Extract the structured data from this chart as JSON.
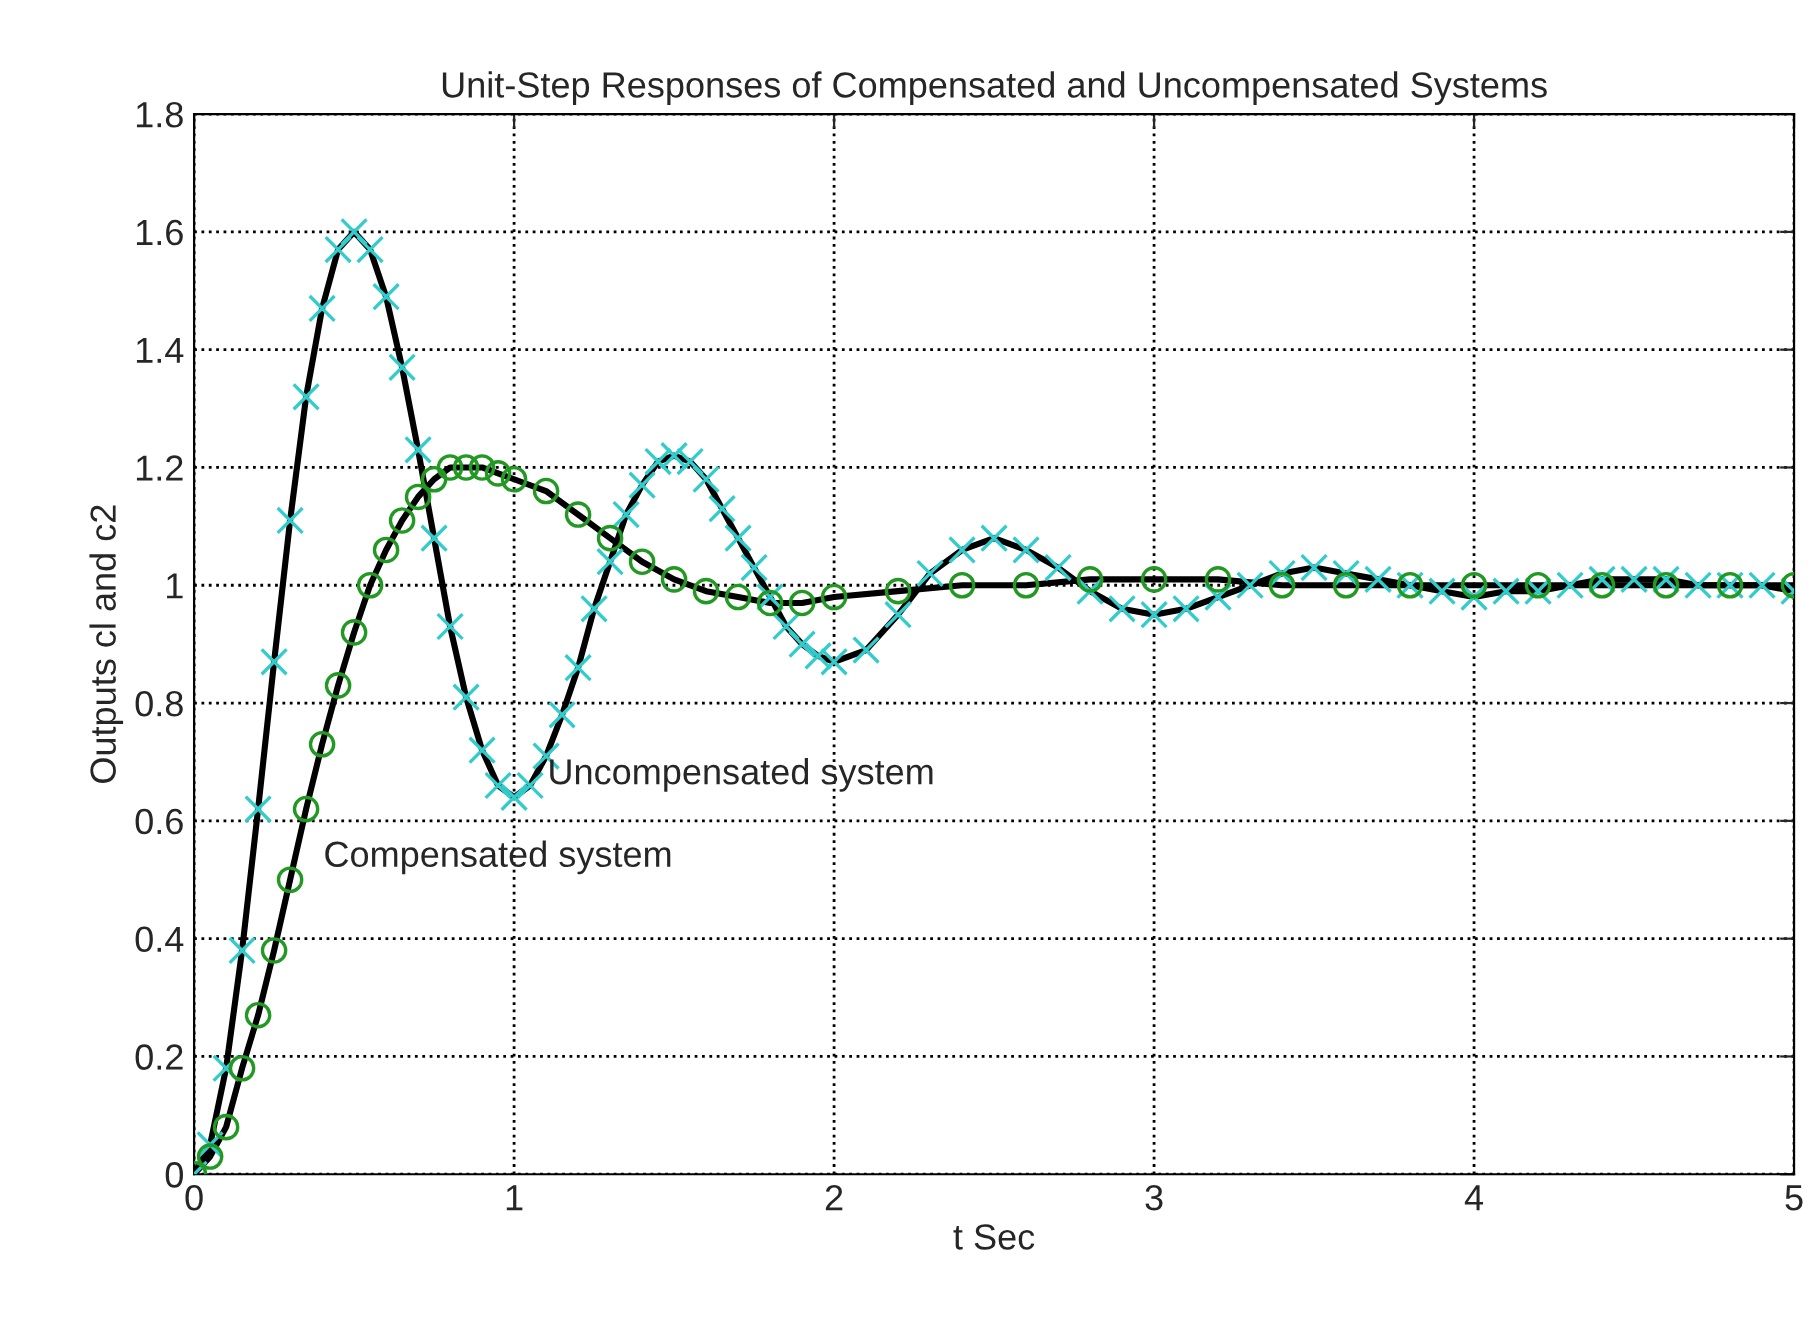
{
  "chart_data": {
    "type": "line",
    "title": "Unit-Step Responses of Compensated and Uncompensated Systems",
    "xlabel": "t Sec",
    "ylabel": "Outputs cl and c2",
    "xlim": [
      0,
      5
    ],
    "ylim": [
      0,
      1.8
    ],
    "xticks": [
      0,
      1,
      2,
      3,
      4,
      5
    ],
    "yticks": [
      0,
      {
        "value": 0.2,
        "label": "0.2"
      },
      {
        "value": 0.4,
        "label": "0.4"
      },
      {
        "value": 0.6,
        "label": "0.6"
      },
      {
        "value": 0.8,
        "label": "0.8"
      },
      1,
      {
        "value": 1.2,
        "label": "1.2"
      },
      {
        "value": 1.4,
        "label": "1.4"
      },
      {
        "value": 1.6,
        "label": "1.6"
      },
      {
        "value": 1.8,
        "label": "1.8"
      }
    ],
    "grid": true,
    "series": [
      {
        "color": "#000000",
        "marker": "none",
        "x": [
          0,
          0.05,
          0.1,
          0.15,
          0.2,
          0.25,
          0.3,
          0.35,
          0.4,
          0.45,
          0.5,
          0.55,
          0.6,
          0.65,
          0.7,
          0.75,
          0.8,
          0.85,
          0.9,
          0.95,
          1.0,
          1.05,
          1.1,
          1.15,
          1.2,
          1.25,
          1.3,
          1.35,
          1.4,
          1.45,
          1.5,
          1.55,
          1.6,
          1.65,
          1.7,
          1.75,
          1.8,
          1.85,
          1.9,
          1.95,
          2.0,
          2.1,
          2.2,
          2.3,
          2.4,
          2.5,
          2.6,
          2.7,
          2.8,
          2.9,
          3.0,
          3.1,
          3.2,
          3.3,
          3.4,
          3.5,
          3.6,
          3.7,
          3.8,
          3.9,
          4.0,
          4.1,
          4.2,
          4.3,
          4.4,
          4.5,
          4.6,
          4.7,
          4.8,
          4.9,
          5.0
        ],
        "values": [
          0,
          0.05,
          0.18,
          0.38,
          0.62,
          0.87,
          1.11,
          1.32,
          1.47,
          1.57,
          1.6,
          1.57,
          1.49,
          1.37,
          1.23,
          1.08,
          0.93,
          0.81,
          0.72,
          0.66,
          0.64,
          0.66,
          0.71,
          0.78,
          0.86,
          0.96,
          1.04,
          1.12,
          1.17,
          1.21,
          1.22,
          1.21,
          1.18,
          1.13,
          1.08,
          1.03,
          0.98,
          0.93,
          0.9,
          0.88,
          0.87,
          0.89,
          0.95,
          1.02,
          1.06,
          1.08,
          1.06,
          1.03,
          0.99,
          0.96,
          0.95,
          0.96,
          0.98,
          1.0,
          1.02,
          1.03,
          1.02,
          1.01,
          1.0,
          0.99,
          0.98,
          0.99,
          0.99,
          1.0,
          1.01,
          1.01,
          1.01,
          1.0,
          1.0,
          1.0,
          0.99
        ]
      },
      {
        "type": "scatter",
        "color": "#33cccc",
        "marker": "cross",
        "x": [
          0,
          0.05,
          0.1,
          0.15,
          0.2,
          0.25,
          0.3,
          0.35,
          0.4,
          0.45,
          0.5,
          0.55,
          0.6,
          0.65,
          0.7,
          0.75,
          0.8,
          0.85,
          0.9,
          0.95,
          1.0,
          1.05,
          1.1,
          1.15,
          1.2,
          1.25,
          1.3,
          1.35,
          1.4,
          1.45,
          1.5,
          1.55,
          1.6,
          1.65,
          1.7,
          1.75,
          1.8,
          1.85,
          1.9,
          1.95,
          2.0,
          2.1,
          2.2,
          2.3,
          2.4,
          2.5,
          2.6,
          2.7,
          2.8,
          2.9,
          3.0,
          3.1,
          3.2,
          3.3,
          3.4,
          3.5,
          3.6,
          3.7,
          3.8,
          3.9,
          4.0,
          4.1,
          4.2,
          4.3,
          4.4,
          4.5,
          4.6,
          4.7,
          4.8,
          4.9,
          5.0
        ],
        "values": [
          0,
          0.05,
          0.18,
          0.38,
          0.62,
          0.87,
          1.11,
          1.32,
          1.47,
          1.57,
          1.6,
          1.57,
          1.49,
          1.37,
          1.23,
          1.08,
          0.93,
          0.81,
          0.72,
          0.66,
          0.64,
          0.66,
          0.71,
          0.78,
          0.86,
          0.96,
          1.04,
          1.12,
          1.17,
          1.21,
          1.22,
          1.21,
          1.18,
          1.13,
          1.08,
          1.03,
          0.98,
          0.93,
          0.9,
          0.88,
          0.87,
          0.89,
          0.95,
          1.02,
          1.06,
          1.08,
          1.06,
          1.03,
          0.99,
          0.96,
          0.95,
          0.96,
          0.98,
          1.0,
          1.02,
          1.03,
          1.02,
          1.01,
          1.0,
          0.99,
          0.98,
          0.99,
          0.99,
          1.0,
          1.01,
          1.01,
          1.01,
          1.0,
          1.0,
          1.0,
          0.99
        ]
      },
      {
        "color": "#000000",
        "marker": "none",
        "x": [
          0,
          0.05,
          0.1,
          0.15,
          0.2,
          0.25,
          0.3,
          0.35,
          0.4,
          0.45,
          0.5,
          0.55,
          0.6,
          0.65,
          0.7,
          0.75,
          0.8,
          0.85,
          0.9,
          0.95,
          1.0,
          1.1,
          1.2,
          1.3,
          1.4,
          1.5,
          1.6,
          1.7,
          1.8,
          1.9,
          2.0,
          2.2,
          2.4,
          2.6,
          2.8,
          3.0,
          3.2,
          3.4,
          3.6,
          3.8,
          4.0,
          4.2,
          4.4,
          4.6,
          4.8,
          5.0
        ],
        "values": [
          0,
          0.03,
          0.08,
          0.18,
          0.27,
          0.38,
          0.5,
          0.62,
          0.73,
          0.83,
          0.92,
          1.0,
          1.06,
          1.11,
          1.15,
          1.18,
          1.2,
          1.2,
          1.2,
          1.19,
          1.18,
          1.16,
          1.12,
          1.08,
          1.04,
          1.01,
          0.99,
          0.98,
          0.97,
          0.97,
          0.98,
          0.99,
          1.0,
          1.0,
          1.01,
          1.01,
          1.01,
          1.0,
          1.0,
          1.0,
          1.0,
          1.0,
          1.0,
          1.0,
          1.0,
          1.0
        ]
      },
      {
        "type": "scatter",
        "color": "#229922",
        "marker": "circle",
        "x": [
          0,
          0.05,
          0.1,
          0.15,
          0.2,
          0.25,
          0.3,
          0.35,
          0.4,
          0.45,
          0.5,
          0.55,
          0.6,
          0.65,
          0.7,
          0.75,
          0.8,
          0.85,
          0.9,
          0.95,
          1.0,
          1.1,
          1.2,
          1.3,
          1.4,
          1.5,
          1.6,
          1.7,
          1.8,
          1.9,
          2.0,
          2.2,
          2.4,
          2.6,
          2.8,
          3.0,
          3.2,
          3.4,
          3.6,
          3.8,
          4.0,
          4.2,
          4.4,
          4.6,
          4.8,
          5.0
        ],
        "values": [
          0,
          0.03,
          0.08,
          0.18,
          0.27,
          0.38,
          0.5,
          0.62,
          0.73,
          0.83,
          0.92,
          1.0,
          1.06,
          1.11,
          1.15,
          1.18,
          1.2,
          1.2,
          1.2,
          1.19,
          1.18,
          1.16,
          1.12,
          1.08,
          1.04,
          1.01,
          0.99,
          0.98,
          0.97,
          0.97,
          0.98,
          0.99,
          1.0,
          1.0,
          1.01,
          1.01,
          1.01,
          1.0,
          1.0,
          1.0,
          1.0,
          1.0,
          1.0,
          1.0,
          1.0,
          1.0
        ]
      }
    ],
    "annotations": [
      {
        "text": "Uncompensated system",
        "x": 1.0,
        "y": 0.64
      },
      {
        "text": "Compensated system",
        "x": 0.3,
        "y": 0.5
      }
    ]
  }
}
